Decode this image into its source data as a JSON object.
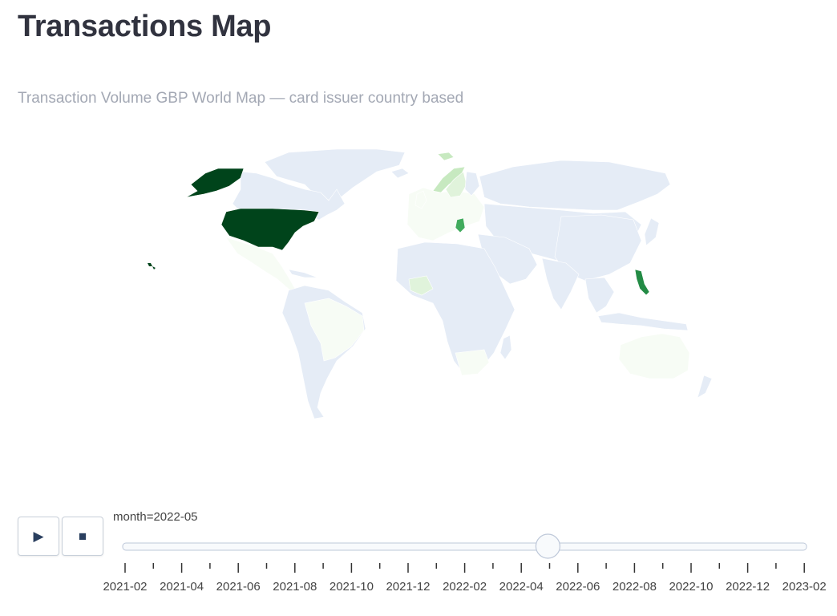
{
  "page": {
    "title": "Transactions Map"
  },
  "map": {
    "title": "Transaction Volume GBP World Map — card issuer country based",
    "base_land_color": "#e5ecf6",
    "coastline_color": "#ffffff",
    "colorscale": [
      "#f7fcf5",
      "#c7e9c0",
      "#74c476",
      "#238b45",
      "#00441b"
    ],
    "regions": [
      {
        "name": "United States",
        "level": 1.0
      },
      {
        "name": "Alaska",
        "level": 1.0
      },
      {
        "name": "Hawaii",
        "level": 0.8
      },
      {
        "name": "Philippines",
        "level": 0.7
      },
      {
        "name": "Serbia",
        "level": 0.6
      },
      {
        "name": "Norway",
        "level": 0.3
      },
      {
        "name": "Sweden",
        "level": 0.2
      },
      {
        "name": "Svalbard",
        "level": 0.3
      },
      {
        "name": "Nigeria",
        "level": 0.15
      },
      {
        "name": "Mexico",
        "level": 0.05
      },
      {
        "name": "Brazil",
        "level": 0.03
      },
      {
        "name": "South Africa",
        "level": 0.08
      },
      {
        "name": "Australia",
        "level": 0.03
      },
      {
        "name": "Europe",
        "level": 0.05
      }
    ]
  },
  "controls": {
    "play_label": "▶",
    "stop_label": "■"
  },
  "slider": {
    "prefix": "month=",
    "current": "2022-05",
    "current_label": "month=2022-05",
    "current_position": 0.6296,
    "ticks": [
      "2021-02",
      "2021-04",
      "2021-06",
      "2021-08",
      "2021-10",
      "2021-12",
      "2022-02",
      "2022-04",
      "2022-06",
      "2022-08",
      "2022-10",
      "2022-12",
      "2023-02"
    ],
    "track_color": "#f8fafc",
    "track_border": "#bec8d9"
  }
}
